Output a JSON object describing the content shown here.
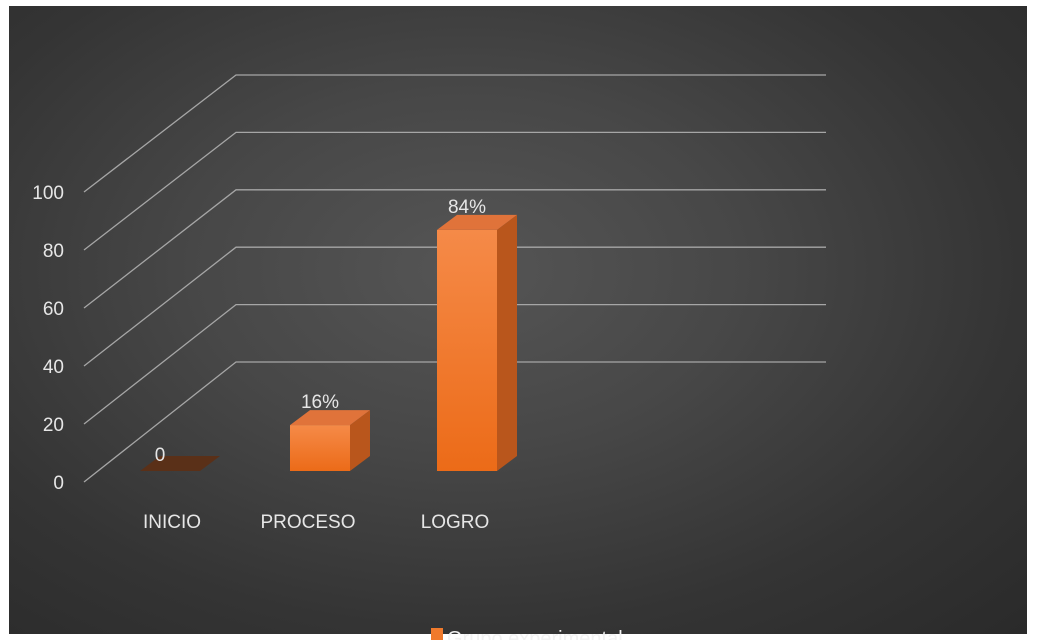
{
  "chart_data": {
    "type": "bar",
    "categories": [
      "INICIO",
      "PROCESO",
      "LOGRO"
    ],
    "series": [
      {
        "name": "Grupo experimental",
        "values": [
          0,
          16,
          84
        ],
        "data_labels": [
          "0",
          "16%",
          "84%"
        ]
      }
    ],
    "yticks": [
      "0",
      "20",
      "40",
      "60",
      "80",
      "100"
    ],
    "ylim": [
      0,
      100
    ],
    "grid": true,
    "legend": "bottom",
    "style": "3d-column",
    "colors": {
      "bar": "#f07a2c",
      "bar_top": "#e0733a",
      "bar_side": "#b9561c",
      "background": "#404040",
      "grid": "#a6a6a6"
    }
  }
}
